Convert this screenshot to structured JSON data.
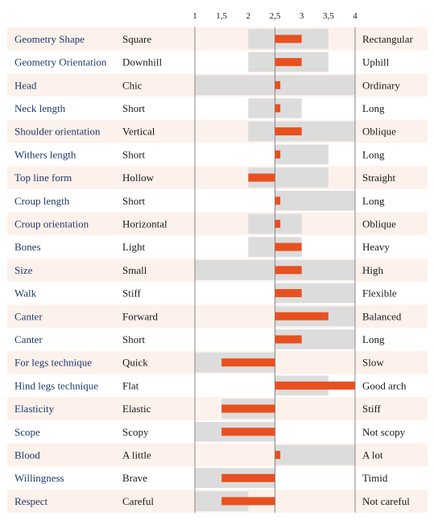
{
  "chart_data": {
    "type": "bar",
    "axis": {
      "min": 1,
      "max": 4,
      "midline": 2.5,
      "ticks": [
        1,
        1.5,
        2,
        2.5,
        3,
        3.5,
        4
      ],
      "tick_labels": [
        "1",
        "1,5",
        "2",
        "2,5",
        "3",
        "3,5",
        "4"
      ]
    },
    "colors": {
      "mean_bar": "#e8501f",
      "range_band": "#dcdcdc",
      "row_stripe": "#fdf1ec",
      "trait_text": "#1f3a6b",
      "axis_lines": "#888888"
    },
    "rows": [
      {
        "trait": "Geometry Shape",
        "low": "Square",
        "high": "Rectangular",
        "range": [
          2,
          3.5
        ],
        "mean": 3
      },
      {
        "trait": "Geometry Orientation",
        "low": "Downhill",
        "high": "Uphill",
        "range": [
          2,
          3.5
        ],
        "mean": 3
      },
      {
        "trait": "Head",
        "low": "Chic",
        "high": "Ordinary",
        "range": [
          1,
          4
        ],
        "mean": 2.6
      },
      {
        "trait": "Neck length",
        "low": "Short",
        "high": "Long",
        "range": [
          2,
          3
        ],
        "mean": 2.6
      },
      {
        "trait": "Shoulder orientation",
        "low": "Vertical",
        "high": "Oblique",
        "range": [
          2,
          4
        ],
        "mean": 3
      },
      {
        "trait": "Withers length",
        "low": "Short",
        "high": "Long",
        "range": [
          2.5,
          3.5
        ],
        "mean": 2.6
      },
      {
        "trait": "Top line form",
        "low": "Hollow",
        "high": "Straight",
        "range": [
          2,
          3.5
        ],
        "mean": 2
      },
      {
        "trait": "Croup length",
        "low": "Short",
        "high": "Long",
        "range": [
          2.5,
          4
        ],
        "mean": 2.6
      },
      {
        "trait": "Croup orientation",
        "low": "Horizontal",
        "high": "Oblique",
        "range": [
          2,
          3
        ],
        "mean": 2.6
      },
      {
        "trait": "Bones",
        "low": "Light",
        "high": "Heavy",
        "range": [
          2,
          3
        ],
        "mean": 3
      },
      {
        "trait": "Size",
        "low": "Small",
        "high": "High",
        "range": [
          1,
          4
        ],
        "mean": 3
      },
      {
        "trait": "Walk",
        "low": "Stiff",
        "high": "Flexible",
        "range": [
          2.5,
          4
        ],
        "mean": 3
      },
      {
        "trait": "Canter",
        "low": "Forward",
        "high": "Balanced",
        "range": [
          2.5,
          4
        ],
        "mean": 3.5
      },
      {
        "trait": "Canter",
        "low": "Short",
        "high": "Long",
        "range": [
          2.5,
          4
        ],
        "mean": 3
      },
      {
        "trait": "For legs technique",
        "low": "Quick",
        "high": "Slow",
        "range": [
          1,
          2.5
        ],
        "mean": 1.5
      },
      {
        "trait": "Hind legs technique",
        "low": "Flat",
        "high": "Good arch",
        "range": [
          2.5,
          3.5
        ],
        "mean": 4
      },
      {
        "trait": "Elasticity",
        "low": "Elastic",
        "high": "Stiff",
        "range": [
          1.5,
          2.5
        ],
        "mean": 1.5
      },
      {
        "trait": "Scope",
        "low": "Scopy",
        "high": "Not scopy",
        "range": [
          1,
          2.5
        ],
        "mean": 1.5
      },
      {
        "trait": "Blood",
        "low": "A little",
        "high": "A lot",
        "range": [
          2.5,
          4
        ],
        "mean": 2.6
      },
      {
        "trait": "Willingness",
        "low": "Brave",
        "high": "Timid",
        "range": [
          1,
          2.5
        ],
        "mean": 1.5
      },
      {
        "trait": "Respect",
        "low": "Careful",
        "high": "Not careful",
        "range": [
          1,
          2
        ],
        "mean": 1.5
      }
    ]
  }
}
